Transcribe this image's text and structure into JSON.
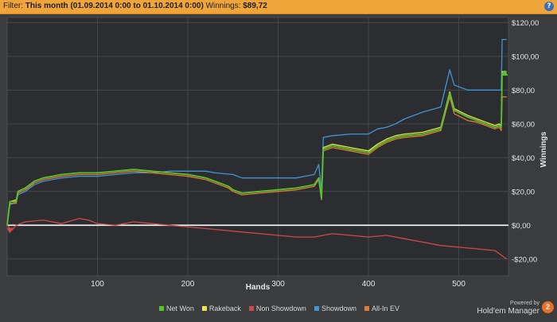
{
  "filter": {
    "prefix": "Filter:",
    "period": "This month (01.09.2014 0:00 to 01.10.2014 0:00)",
    "winnings_label": "Winnings:",
    "winnings_value": "$89,72",
    "help_glyph": "?"
  },
  "branding": {
    "powered_by": "Powered by",
    "product": "Hold'em Manager",
    "logo_glyph": "2"
  },
  "legend": [
    {
      "label": "Net Won",
      "color": "#56c22c"
    },
    {
      "label": "Rakeback",
      "color": "#ede34c"
    },
    {
      "label": "Non Showdown",
      "color": "#d04848"
    },
    {
      "label": "Showdown",
      "color": "#3f95d6"
    },
    {
      "label": "All-In EV",
      "color": "#e07b35"
    }
  ],
  "colors": {
    "background": "#3a3c3e",
    "plot_background": "#2c2d30",
    "filter_bar": "#f0a53a",
    "zero_line": "#ffffff"
  },
  "chart_data": {
    "type": "line",
    "xlabel": "Hands",
    "ylabel": "Winnings",
    "xlim": [
      0,
      555
    ],
    "ylim": [
      -30,
      123
    ],
    "x_ticks": [
      100,
      200,
      300,
      400,
      500
    ],
    "y_ticks": [
      -20,
      0,
      20,
      40,
      60,
      80,
      100,
      120
    ],
    "y_tick_labels": [
      "-$20,00",
      "$0,00",
      "$20,00",
      "$40,00",
      "$60,00",
      "$80,00",
      "$100,00",
      "$120,00"
    ],
    "grid": true,
    "legend_position": "bottom",
    "series": [
      {
        "name": "Net Won",
        "points": [
          [
            0,
            0
          ],
          [
            3,
            14
          ],
          [
            10,
            14
          ],
          [
            12,
            20
          ],
          [
            20,
            22
          ],
          [
            30,
            26
          ],
          [
            40,
            28
          ],
          [
            50,
            29
          ],
          [
            60,
            30
          ],
          [
            80,
            31
          ],
          [
            100,
            31
          ],
          [
            120,
            32
          ],
          [
            140,
            33
          ],
          [
            160,
            32
          ],
          [
            180,
            31
          ],
          [
            200,
            30
          ],
          [
            220,
            28
          ],
          [
            230,
            26
          ],
          [
            245,
            23
          ],
          [
            250,
            21
          ],
          [
            260,
            19
          ],
          [
            280,
            20
          ],
          [
            300,
            21
          ],
          [
            320,
            22
          ],
          [
            340,
            24
          ],
          [
            345,
            28
          ],
          [
            348,
            16
          ],
          [
            350,
            45
          ],
          [
            360,
            47
          ],
          [
            380,
            45
          ],
          [
            400,
            43
          ],
          [
            410,
            47
          ],
          [
            420,
            50
          ],
          [
            430,
            52
          ],
          [
            440,
            53
          ],
          [
            460,
            54
          ],
          [
            480,
            57
          ],
          [
            490,
            78
          ],
          [
            495,
            68
          ],
          [
            510,
            64
          ],
          [
            520,
            62
          ],
          [
            530,
            60
          ],
          [
            540,
            58
          ],
          [
            545,
            59
          ],
          [
            547,
            58
          ],
          [
            548,
            90
          ],
          [
            553,
            90
          ]
        ]
      },
      {
        "name": "Rakeback",
        "points": [
          [
            0,
            0
          ],
          [
            3,
            14
          ],
          [
            10,
            15
          ],
          [
            12,
            20
          ],
          [
            20,
            22
          ],
          [
            30,
            26
          ],
          [
            40,
            28
          ],
          [
            50,
            29
          ],
          [
            60,
            30
          ],
          [
            80,
            31
          ],
          [
            100,
            31
          ],
          [
            120,
            32
          ],
          [
            140,
            33
          ],
          [
            160,
            32
          ],
          [
            180,
            31
          ],
          [
            200,
            30
          ],
          [
            220,
            28
          ],
          [
            230,
            26
          ],
          [
            245,
            23
          ],
          [
            250,
            21
          ],
          [
            260,
            19
          ],
          [
            280,
            20
          ],
          [
            300,
            21
          ],
          [
            320,
            22
          ],
          [
            340,
            24
          ],
          [
            345,
            28
          ],
          [
            348,
            16
          ],
          [
            350,
            46
          ],
          [
            360,
            48
          ],
          [
            380,
            46
          ],
          [
            400,
            44
          ],
          [
            410,
            48
          ],
          [
            420,
            51
          ],
          [
            430,
            53
          ],
          [
            440,
            54
          ],
          [
            460,
            55
          ],
          [
            480,
            58
          ],
          [
            490,
            79
          ],
          [
            495,
            69
          ],
          [
            510,
            65
          ],
          [
            520,
            63
          ],
          [
            530,
            61
          ],
          [
            540,
            59
          ],
          [
            545,
            60
          ],
          [
            547,
            59
          ],
          [
            548,
            91
          ],
          [
            553,
            91
          ]
        ]
      },
      {
        "name": "Non Showdown",
        "points": [
          [
            0,
            0
          ],
          [
            5,
            -3
          ],
          [
            10,
            0
          ],
          [
            20,
            2
          ],
          [
            40,
            3
          ],
          [
            60,
            1
          ],
          [
            80,
            4
          ],
          [
            90,
            3
          ],
          [
            100,
            1
          ],
          [
            120,
            0
          ],
          [
            140,
            2
          ],
          [
            160,
            1
          ],
          [
            180,
            0
          ],
          [
            200,
            -1
          ],
          [
            220,
            -2
          ],
          [
            240,
            -3
          ],
          [
            260,
            -4
          ],
          [
            280,
            -5
          ],
          [
            300,
            -6
          ],
          [
            320,
            -7
          ],
          [
            340,
            -7
          ],
          [
            360,
            -5
          ],
          [
            380,
            -6
          ],
          [
            400,
            -7
          ],
          [
            420,
            -6
          ],
          [
            440,
            -8
          ],
          [
            460,
            -10
          ],
          [
            480,
            -12
          ],
          [
            500,
            -13
          ],
          [
            520,
            -14
          ],
          [
            540,
            -15
          ],
          [
            553,
            -20
          ]
        ]
      },
      {
        "name": "Showdown",
        "points": [
          [
            0,
            0
          ],
          [
            3,
            12
          ],
          [
            10,
            14
          ],
          [
            12,
            18
          ],
          [
            20,
            20
          ],
          [
            30,
            24
          ],
          [
            40,
            26
          ],
          [
            50,
            27
          ],
          [
            60,
            28
          ],
          [
            80,
            29
          ],
          [
            100,
            29
          ],
          [
            120,
            30
          ],
          [
            140,
            31
          ],
          [
            160,
            31
          ],
          [
            180,
            32
          ],
          [
            200,
            32
          ],
          [
            220,
            32
          ],
          [
            230,
            31
          ],
          [
            250,
            30
          ],
          [
            260,
            28
          ],
          [
            280,
            28
          ],
          [
            300,
            28
          ],
          [
            320,
            28
          ],
          [
            340,
            30
          ],
          [
            345,
            36
          ],
          [
            348,
            21
          ],
          [
            350,
            52
          ],
          [
            360,
            53
          ],
          [
            380,
            54
          ],
          [
            400,
            54
          ],
          [
            410,
            57
          ],
          [
            420,
            58
          ],
          [
            430,
            60
          ],
          [
            440,
            63
          ],
          [
            460,
            67
          ],
          [
            480,
            70
          ],
          [
            490,
            92
          ],
          [
            495,
            83
          ],
          [
            510,
            80
          ],
          [
            520,
            80
          ],
          [
            530,
            80
          ],
          [
            540,
            80
          ],
          [
            547,
            80
          ],
          [
            548,
            110
          ],
          [
            553,
            110
          ]
        ]
      },
      {
        "name": "All-In EV",
        "points": [
          [
            0,
            0
          ],
          [
            3,
            13
          ],
          [
            10,
            13
          ],
          [
            12,
            19
          ],
          [
            20,
            21
          ],
          [
            30,
            25
          ],
          [
            40,
            27
          ],
          [
            50,
            28
          ],
          [
            60,
            29
          ],
          [
            80,
            30
          ],
          [
            100,
            30
          ],
          [
            120,
            31
          ],
          [
            140,
            32
          ],
          [
            160,
            31
          ],
          [
            180,
            30
          ],
          [
            200,
            29
          ],
          [
            220,
            27
          ],
          [
            230,
            25
          ],
          [
            245,
            22
          ],
          [
            250,
            20
          ],
          [
            260,
            18
          ],
          [
            280,
            19
          ],
          [
            300,
            20
          ],
          [
            320,
            21
          ],
          [
            340,
            23
          ],
          [
            345,
            27
          ],
          [
            348,
            15
          ],
          [
            350,
            44
          ],
          [
            360,
            46
          ],
          [
            380,
            44
          ],
          [
            400,
            42
          ],
          [
            410,
            46
          ],
          [
            420,
            49
          ],
          [
            430,
            51
          ],
          [
            440,
            52
          ],
          [
            460,
            53
          ],
          [
            480,
            56
          ],
          [
            490,
            76
          ],
          [
            495,
            66
          ],
          [
            510,
            62
          ],
          [
            520,
            61
          ],
          [
            530,
            59
          ],
          [
            540,
            57
          ],
          [
            545,
            58
          ],
          [
            547,
            56
          ],
          [
            548,
            76
          ],
          [
            553,
            76
          ]
        ]
      }
    ],
    "markers": [
      {
        "series": "Non Showdown",
        "shape": "triangle-down",
        "x": 3,
        "y": -3
      },
      {
        "series": "Net Won",
        "shape": "triangle-up",
        "x": 551,
        "y": 90
      }
    ]
  }
}
